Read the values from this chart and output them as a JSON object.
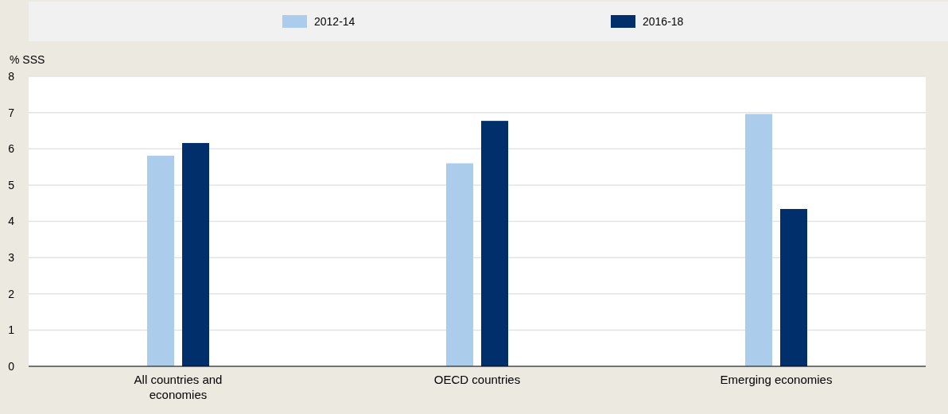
{
  "chart_data": {
    "type": "bar",
    "ylabel": "% SSS",
    "categories": [
      "All countries and economies",
      "OECD countries",
      "Emerging economies"
    ],
    "series": [
      {
        "name": "2012-14",
        "color": "#abcdeb",
        "values": [
          5.81,
          5.6,
          6.96
        ]
      },
      {
        "name": "2016-18",
        "color": "#002f6c",
        "values": [
          6.16,
          6.77,
          4.34
        ]
      }
    ],
    "ylim": [
      0,
      8
    ],
    "yticks": [
      0,
      1,
      2,
      3,
      4,
      5,
      6,
      7,
      8
    ],
    "grid": "y",
    "legend": "top"
  }
}
